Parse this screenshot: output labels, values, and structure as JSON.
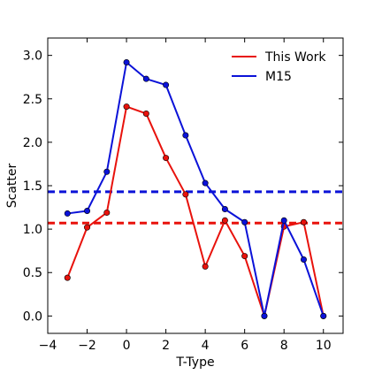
{
  "chart_data": {
    "type": "line",
    "xlabel": "T-Type",
    "ylabel": "Scatter",
    "xlim": [
      -4,
      11
    ],
    "ylim": [
      -0.2,
      3.2
    ],
    "xticks": [
      -4,
      -2,
      0,
      2,
      4,
      6,
      8,
      10
    ],
    "yticks": [
      0.0,
      0.5,
      1.0,
      1.5,
      2.0,
      2.5,
      3.0
    ],
    "xtick_labels": [
      "−4",
      "−2",
      "0",
      "2",
      "4",
      "6",
      "8",
      "10"
    ],
    "ytick_labels": [
      "0.0",
      "0.5",
      "1.0",
      "1.5",
      "2.0",
      "2.5",
      "3.0"
    ],
    "grid": false,
    "legend_position": "top-right",
    "series": [
      {
        "name": "This Work",
        "color": "#e8120c",
        "x": [
          -3,
          -2,
          -1,
          0,
          1,
          2,
          3,
          4,
          5,
          6,
          7,
          8,
          9,
          10
        ],
        "y": [
          0.44,
          1.02,
          1.19,
          2.41,
          2.33,
          1.82,
          1.4,
          0.57,
          1.1,
          0.69,
          0.0,
          1.03,
          1.08,
          0.0
        ],
        "reference_line": 1.07
      },
      {
        "name": "M15",
        "color": "#0b12d8",
        "x": [
          -3,
          -2,
          -1,
          0,
          1,
          2,
          3,
          4,
          5,
          6,
          7,
          8,
          9,
          10
        ],
        "y": [
          1.18,
          1.21,
          1.66,
          2.92,
          2.73,
          2.66,
          2.08,
          1.53,
          1.23,
          1.08,
          0.0,
          1.1,
          0.65,
          0.0
        ],
        "reference_line": 1.43
      }
    ]
  }
}
